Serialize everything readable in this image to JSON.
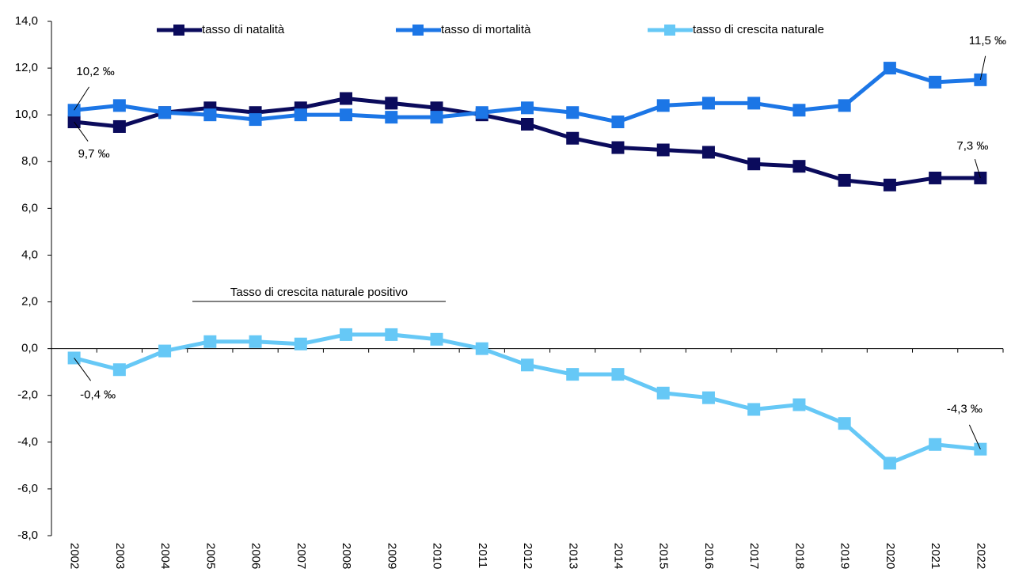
{
  "chart_data": {
    "type": "line",
    "categories": [
      "2002",
      "2003",
      "2004",
      "2005",
      "2006",
      "2007",
      "2008",
      "2009",
      "2010",
      "2011",
      "2012",
      "2013",
      "2014",
      "2015",
      "2016",
      "2017",
      "2018",
      "2019",
      "2020",
      "2021",
      "2022"
    ],
    "series": [
      {
        "name": "tasso di natalità",
        "color": "#0b0b5c",
        "values": [
          9.7,
          9.5,
          10.1,
          10.3,
          10.1,
          10.3,
          10.7,
          10.5,
          10.3,
          10.0,
          9.6,
          9.0,
          8.6,
          8.5,
          8.4,
          7.9,
          7.8,
          7.2,
          7.0,
          7.3,
          7.3
        ],
        "value_labels": [
          "9,7 ‰",
          null,
          null,
          null,
          null,
          null,
          null,
          null,
          null,
          null,
          null,
          null,
          null,
          null,
          null,
          null,
          null,
          null,
          null,
          null,
          "7,3 ‰"
        ]
      },
      {
        "name": "tasso di mortalità",
        "color": "#1c76e6",
        "values": [
          10.2,
          10.4,
          10.1,
          10.0,
          9.8,
          10.0,
          10.0,
          9.9,
          9.9,
          10.1,
          10.3,
          10.1,
          9.7,
          10.4,
          10.5,
          10.5,
          10.2,
          10.4,
          12.0,
          11.4,
          11.5
        ],
        "value_labels": [
          "10,2 ‰",
          null,
          null,
          null,
          null,
          null,
          null,
          null,
          null,
          null,
          null,
          null,
          null,
          null,
          null,
          null,
          null,
          null,
          null,
          null,
          "11,5 ‰"
        ]
      },
      {
        "name": "tasso di crescita naturale",
        "color": "#66c8f6",
        "values": [
          -0.4,
          -0.9,
          -0.1,
          0.3,
          0.3,
          0.2,
          0.6,
          0.6,
          0.4,
          0.0,
          -0.7,
          -1.1,
          -1.1,
          -1.9,
          -2.1,
          -2.6,
          -2.4,
          -3.2,
          -4.9,
          -4.1,
          -4.3
        ],
        "value_labels": [
          "-0,4 ‰",
          null,
          null,
          null,
          null,
          null,
          null,
          null,
          null,
          null,
          null,
          null,
          null,
          null,
          null,
          null,
          null,
          null,
          null,
          null,
          "-4,3 ‰"
        ]
      }
    ],
    "ylim": [
      -8,
      14
    ],
    "yticks": [
      {
        "value": -8,
        "label": "-8,0"
      },
      {
        "value": -6,
        "label": "-6,0"
      },
      {
        "value": -4,
        "label": "-4,0"
      },
      {
        "value": -2,
        "label": "-2,0"
      },
      {
        "value": 0,
        "label": "0,0"
      },
      {
        "value": 2,
        "label": "2,0"
      },
      {
        "value": 4,
        "label": "4,0"
      },
      {
        "value": 6,
        "label": "6,0"
      },
      {
        "value": 8,
        "label": "8,0"
      },
      {
        "value": 10,
        "label": "10,0"
      },
      {
        "value": 12,
        "label": "12,0"
      },
      {
        "value": 14,
        "label": "14,0"
      }
    ],
    "annotation": "Tasso di crescita naturale positivo",
    "grid": false,
    "legend": "top"
  }
}
